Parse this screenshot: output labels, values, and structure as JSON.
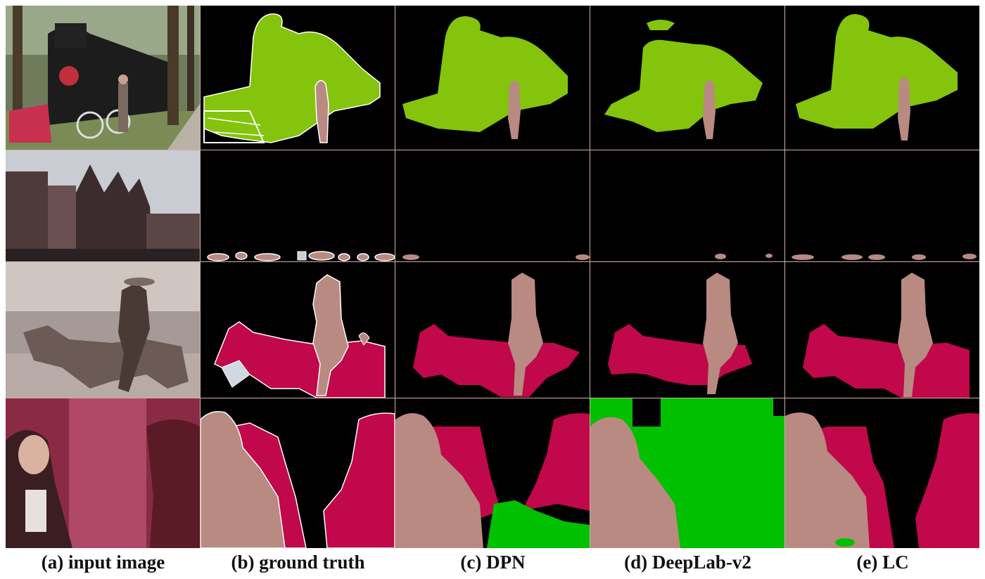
{
  "figure": {
    "captions": [
      "(a) input image",
      "(b) ground truth",
      "(c) DPN",
      "(d) DeepLab-v2",
      "(e) LC"
    ]
  },
  "rows": [
    {
      "scene": "steam locomotive with person"
    },
    {
      "scene": "gothic church street"
    },
    {
      "scene": "cowboy on horse"
    },
    {
      "scene": "man in leather chairs"
    }
  ],
  "colors": {
    "train": "#84c40c",
    "person": "#b88a82",
    "horse": "#c0084a",
    "chair": "#c0084a",
    "car": "#b88a82",
    "sofa_green": "#00c000",
    "ignore": "#ffffff",
    "background": "#000000"
  }
}
